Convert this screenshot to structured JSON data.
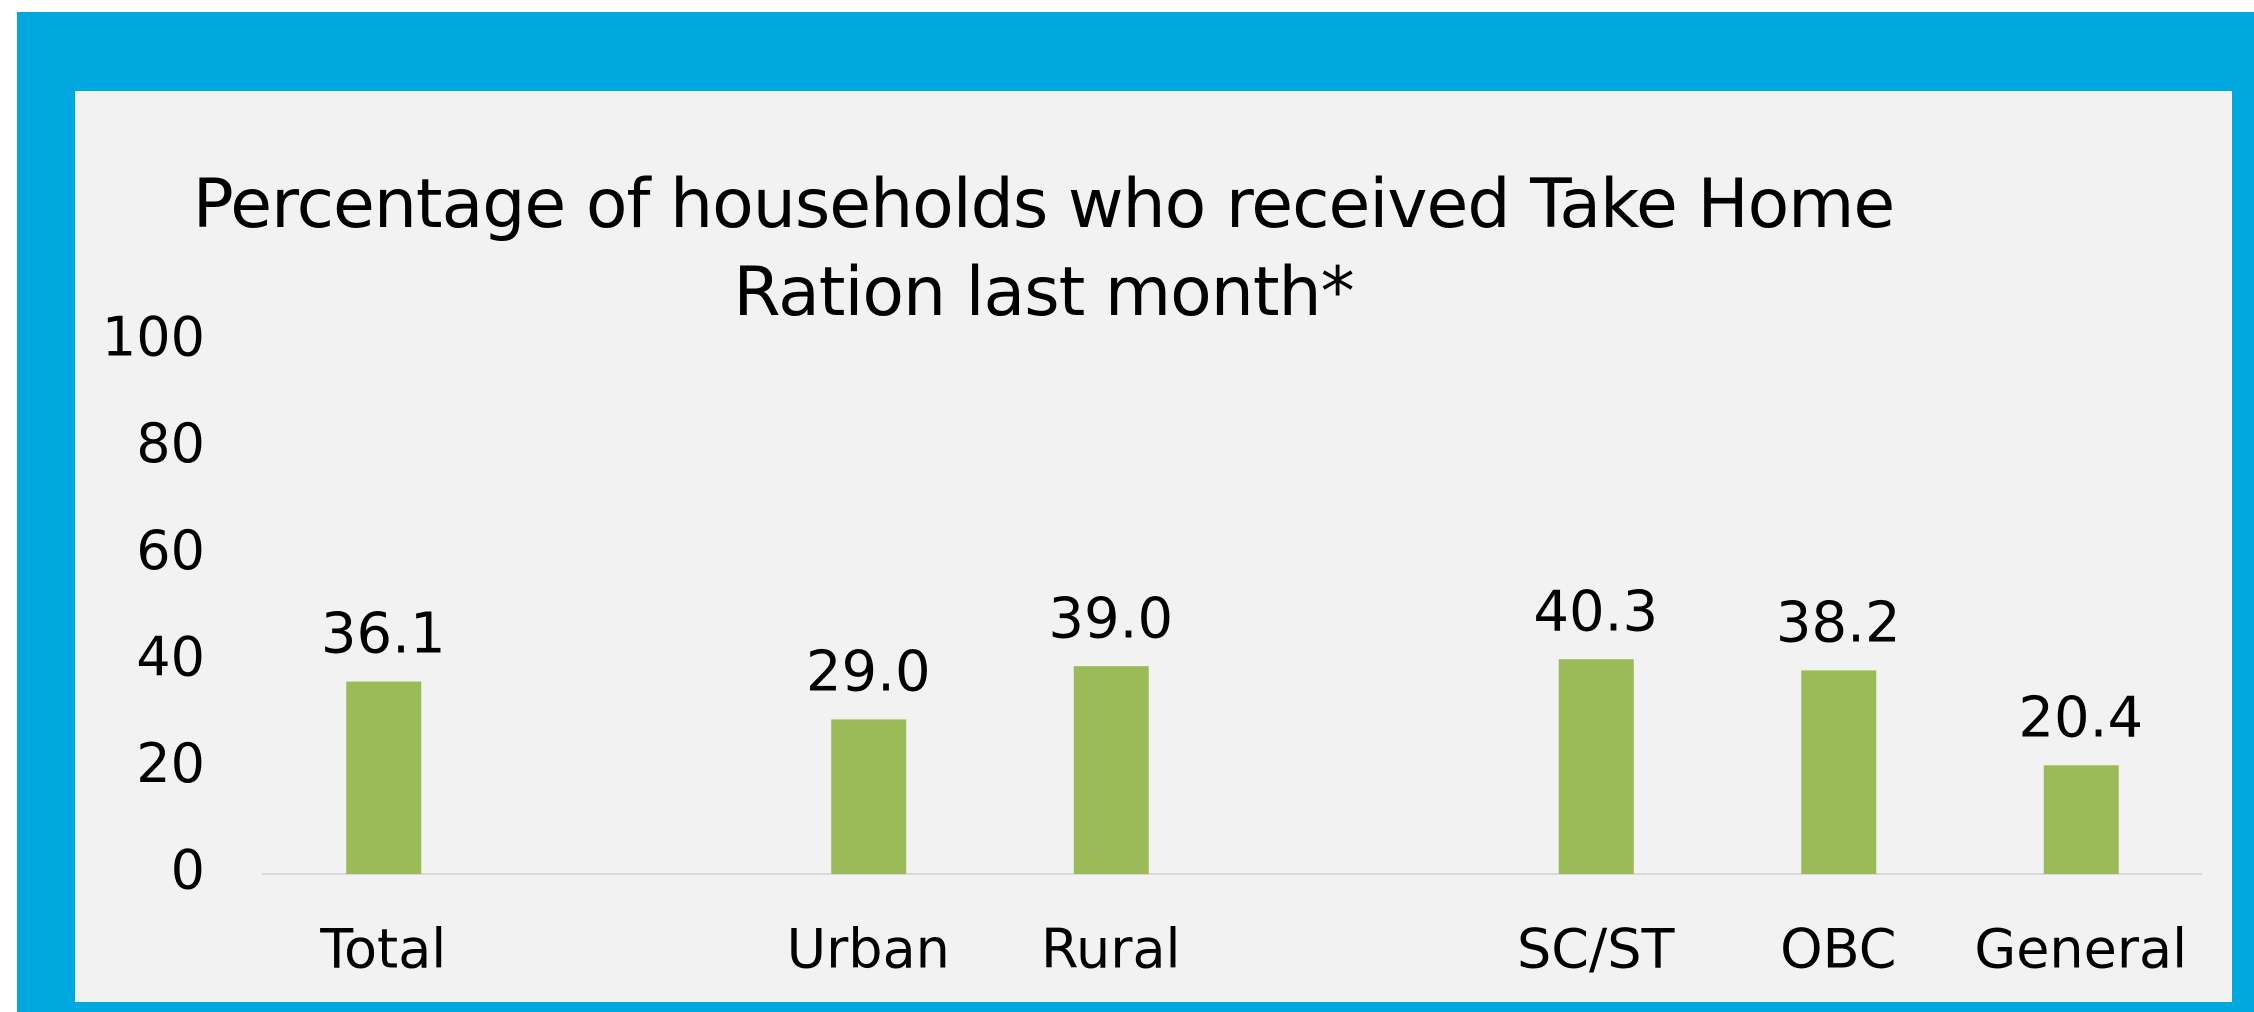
{
  "chart_data": {
    "type": "bar",
    "title": "Percentage of households who received Take Home Ration last month*",
    "categories": [
      "Total",
      null,
      "Urban",
      "Rural",
      null,
      "SC/ST",
      "OBC",
      "General"
    ],
    "values": [
      36.1,
      null,
      29.0,
      39.0,
      null,
      40.3,
      38.2,
      20.4
    ],
    "value_labels": [
      "36.1",
      null,
      "29.0",
      "39.0",
      null,
      "40.3",
      "38.2",
      "20.4"
    ],
    "color": "#9bbb59",
    "ylim": [
      0,
      100
    ],
    "yticks": [
      0,
      20,
      40,
      60,
      80,
      100
    ],
    "grid": false
  }
}
